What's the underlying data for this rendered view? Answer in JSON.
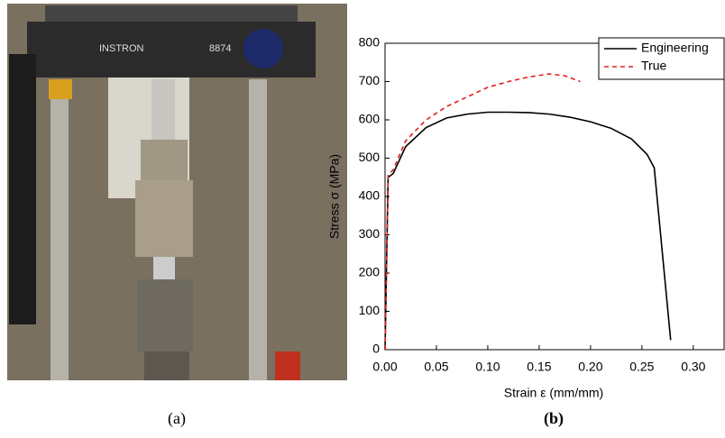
{
  "chart_data": {
    "type": "line",
    "xlabel": "Strain ε (mm/mm)",
    "ylabel": "Stress σ (MPa)",
    "panel_labels": [
      "(a)",
      "(b)"
    ],
    "xlim": [
      0,
      0.33
    ],
    "ylim": [
      0,
      800
    ],
    "xticks": [
      {
        "value": 0,
        "label": "0.00"
      },
      {
        "value": 0.05,
        "label": "0.05"
      },
      {
        "value": 0.1,
        "label": "0.10"
      },
      {
        "value": 0.15,
        "label": "0.15"
      },
      {
        "value": 0.2,
        "label": "0.20"
      },
      {
        "value": 0.25,
        "label": "0.25"
      },
      {
        "value": 0.3,
        "label": "0.30"
      }
    ],
    "yticks": [
      0,
      100,
      200,
      300,
      400,
      500,
      600,
      700,
      800
    ],
    "legend": "upper right",
    "series": [
      {
        "name": "Engineering",
        "color": "#000000",
        "dash": "none",
        "x": [
          0,
          0.003,
          0.008,
          0.02,
          0.04,
          0.06,
          0.08,
          0.1,
          0.12,
          0.14,
          0.16,
          0.18,
          0.2,
          0.22,
          0.24,
          0.255,
          0.262,
          0.27,
          0.278
        ],
        "values": [
          0,
          450,
          460,
          530,
          580,
          605,
          615,
          620,
          620,
          619,
          615,
          607,
          595,
          578,
          550,
          510,
          475,
          250,
          25
        ]
      },
      {
        "name": "True",
        "color": "#e41a1c",
        "dash": "5,4",
        "x": [
          0,
          0.003,
          0.008,
          0.02,
          0.04,
          0.06,
          0.08,
          0.1,
          0.12,
          0.14,
          0.16,
          0.175,
          0.19
        ],
        "values": [
          0,
          455,
          470,
          545,
          600,
          635,
          660,
          685,
          700,
          712,
          720,
          715,
          700
        ]
      }
    ]
  }
}
